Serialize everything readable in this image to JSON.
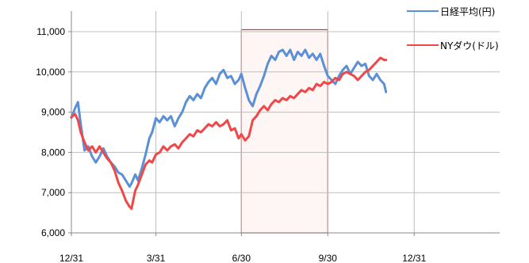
{
  "chart_data": {
    "type": "line",
    "ylim": [
      6000,
      11000
    ],
    "y_ticks": [
      {
        "value": 11000,
        "label": "11,000"
      },
      {
        "value": 10000,
        "label": "10,000"
      },
      {
        "value": 9000,
        "label": "9,000"
      },
      {
        "value": 8000,
        "label": "8,000"
      },
      {
        "value": 7000,
        "label": "7,000"
      },
      {
        "value": 6000,
        "label": "6,000"
      }
    ],
    "x_range_days": [
      0,
      456
    ],
    "x_ticks": [
      {
        "day": 0,
        "label": "12/31"
      },
      {
        "day": 90,
        "label": "3/31"
      },
      {
        "day": 181,
        "label": "6/30"
      },
      {
        "day": 273,
        "label": "9/30"
      },
      {
        "day": 365,
        "label": "12/31"
      }
    ],
    "grid": {
      "vertical": true,
      "horizontal": true
    },
    "legend_position": "top-right",
    "highlight_region": {
      "x_start_day": 181,
      "x_end_day": 273,
      "y_start": 6000,
      "y_end": 11050,
      "fill": "#fdf6f4",
      "stroke": "#e03030"
    },
    "series": [
      {
        "name": "日経平均(円)",
        "color": "#5b8fd6",
        "points": [
          [
            0,
            8860
          ],
          [
            4,
            9100
          ],
          [
            7,
            9250
          ],
          [
            10,
            8700
          ],
          [
            14,
            8050
          ],
          [
            18,
            8150
          ],
          [
            22,
            7900
          ],
          [
            26,
            7750
          ],
          [
            30,
            7900
          ],
          [
            34,
            8100
          ],
          [
            38,
            7900
          ],
          [
            42,
            7750
          ],
          [
            46,
            7650
          ],
          [
            50,
            7500
          ],
          [
            54,
            7450
          ],
          [
            58,
            7300
          ],
          [
            62,
            7150
          ],
          [
            64,
            7230
          ],
          [
            68,
            7450
          ],
          [
            71,
            7300
          ],
          [
            75,
            7600
          ],
          [
            79,
            7950
          ],
          [
            83,
            8350
          ],
          [
            86,
            8500
          ],
          [
            90,
            8850
          ],
          [
            94,
            8750
          ],
          [
            98,
            8900
          ],
          [
            102,
            8800
          ],
          [
            106,
            8900
          ],
          [
            110,
            8650
          ],
          [
            114,
            8850
          ],
          [
            118,
            9000
          ],
          [
            122,
            9250
          ],
          [
            126,
            9400
          ],
          [
            130,
            9300
          ],
          [
            134,
            9450
          ],
          [
            138,
            9350
          ],
          [
            142,
            9600
          ],
          [
            146,
            9750
          ],
          [
            150,
            9850
          ],
          [
            154,
            9700
          ],
          [
            158,
            9950
          ],
          [
            162,
            10050
          ],
          [
            166,
            9850
          ],
          [
            170,
            9900
          ],
          [
            174,
            9700
          ],
          [
            178,
            9800
          ],
          [
            181,
            9950
          ],
          [
            185,
            9600
          ],
          [
            189,
            9300
          ],
          [
            193,
            9150
          ],
          [
            197,
            9450
          ],
          [
            201,
            9650
          ],
          [
            205,
            9900
          ],
          [
            209,
            10200
          ],
          [
            213,
            10400
          ],
          [
            217,
            10300
          ],
          [
            221,
            10500
          ],
          [
            225,
            10550
          ],
          [
            229,
            10400
          ],
          [
            233,
            10550
          ],
          [
            237,
            10300
          ],
          [
            241,
            10500
          ],
          [
            245,
            10400
          ],
          [
            249,
            10550
          ],
          [
            253,
            10350
          ],
          [
            257,
            10450
          ],
          [
            261,
            10300
          ],
          [
            265,
            10450
          ],
          [
            269,
            10150
          ],
          [
            273,
            9900
          ],
          [
            277,
            9800
          ],
          [
            281,
            9700
          ],
          [
            285,
            9900
          ],
          [
            289,
            10050
          ],
          [
            293,
            10150
          ],
          [
            297,
            9950
          ],
          [
            301,
            10100
          ],
          [
            305,
            10250
          ],
          [
            309,
            10150
          ],
          [
            313,
            10200
          ],
          [
            317,
            9900
          ],
          [
            321,
            9800
          ],
          [
            325,
            9950
          ],
          [
            329,
            9800
          ],
          [
            333,
            9700
          ],
          [
            335,
            9500
          ]
        ]
      },
      {
        "name": "NYダウ(ドル)",
        "color": "#f04848",
        "points": [
          [
            0,
            8880
          ],
          [
            4,
            8950
          ],
          [
            7,
            8800
          ],
          [
            10,
            8500
          ],
          [
            14,
            8250
          ],
          [
            18,
            8050
          ],
          [
            22,
            8150
          ],
          [
            26,
            8000
          ],
          [
            30,
            8150
          ],
          [
            34,
            8000
          ],
          [
            38,
            7850
          ],
          [
            42,
            7750
          ],
          [
            46,
            7550
          ],
          [
            50,
            7250
          ],
          [
            54,
            7050
          ],
          [
            58,
            6800
          ],
          [
            62,
            6650
          ],
          [
            64,
            6600
          ],
          [
            68,
            7050
          ],
          [
            71,
            7200
          ],
          [
            75,
            7450
          ],
          [
            79,
            7700
          ],
          [
            83,
            7800
          ],
          [
            86,
            7750
          ],
          [
            90,
            7950
          ],
          [
            94,
            8000
          ],
          [
            98,
            8150
          ],
          [
            102,
            8050
          ],
          [
            106,
            8150
          ],
          [
            110,
            8200
          ],
          [
            114,
            8100
          ],
          [
            118,
            8250
          ],
          [
            122,
            8350
          ],
          [
            126,
            8450
          ],
          [
            130,
            8400
          ],
          [
            134,
            8550
          ],
          [
            138,
            8500
          ],
          [
            142,
            8600
          ],
          [
            146,
            8700
          ],
          [
            150,
            8650
          ],
          [
            154,
            8750
          ],
          [
            158,
            8650
          ],
          [
            162,
            8700
          ],
          [
            166,
            8800
          ],
          [
            170,
            8550
          ],
          [
            174,
            8600
          ],
          [
            178,
            8350
          ],
          [
            181,
            8450
          ],
          [
            185,
            8300
          ],
          [
            189,
            8400
          ],
          [
            193,
            8800
          ],
          [
            197,
            8900
          ],
          [
            201,
            9050
          ],
          [
            205,
            9150
          ],
          [
            209,
            9050
          ],
          [
            213,
            9200
          ],
          [
            217,
            9300
          ],
          [
            221,
            9250
          ],
          [
            225,
            9350
          ],
          [
            229,
            9300
          ],
          [
            233,
            9400
          ],
          [
            237,
            9350
          ],
          [
            241,
            9450
          ],
          [
            245,
            9550
          ],
          [
            249,
            9500
          ],
          [
            253,
            9600
          ],
          [
            257,
            9550
          ],
          [
            261,
            9700
          ],
          [
            265,
            9650
          ],
          [
            269,
            9750
          ],
          [
            273,
            9700
          ],
          [
            277,
            9750
          ],
          [
            281,
            9850
          ],
          [
            285,
            9800
          ],
          [
            289,
            9950
          ],
          [
            293,
            10000
          ],
          [
            297,
            9950
          ],
          [
            301,
            9900
          ],
          [
            305,
            9800
          ],
          [
            309,
            9900
          ],
          [
            313,
            10000
          ],
          [
            317,
            10050
          ],
          [
            321,
            10150
          ],
          [
            325,
            10250
          ],
          [
            329,
            10350
          ],
          [
            333,
            10300
          ],
          [
            335,
            10300
          ]
        ]
      }
    ]
  }
}
